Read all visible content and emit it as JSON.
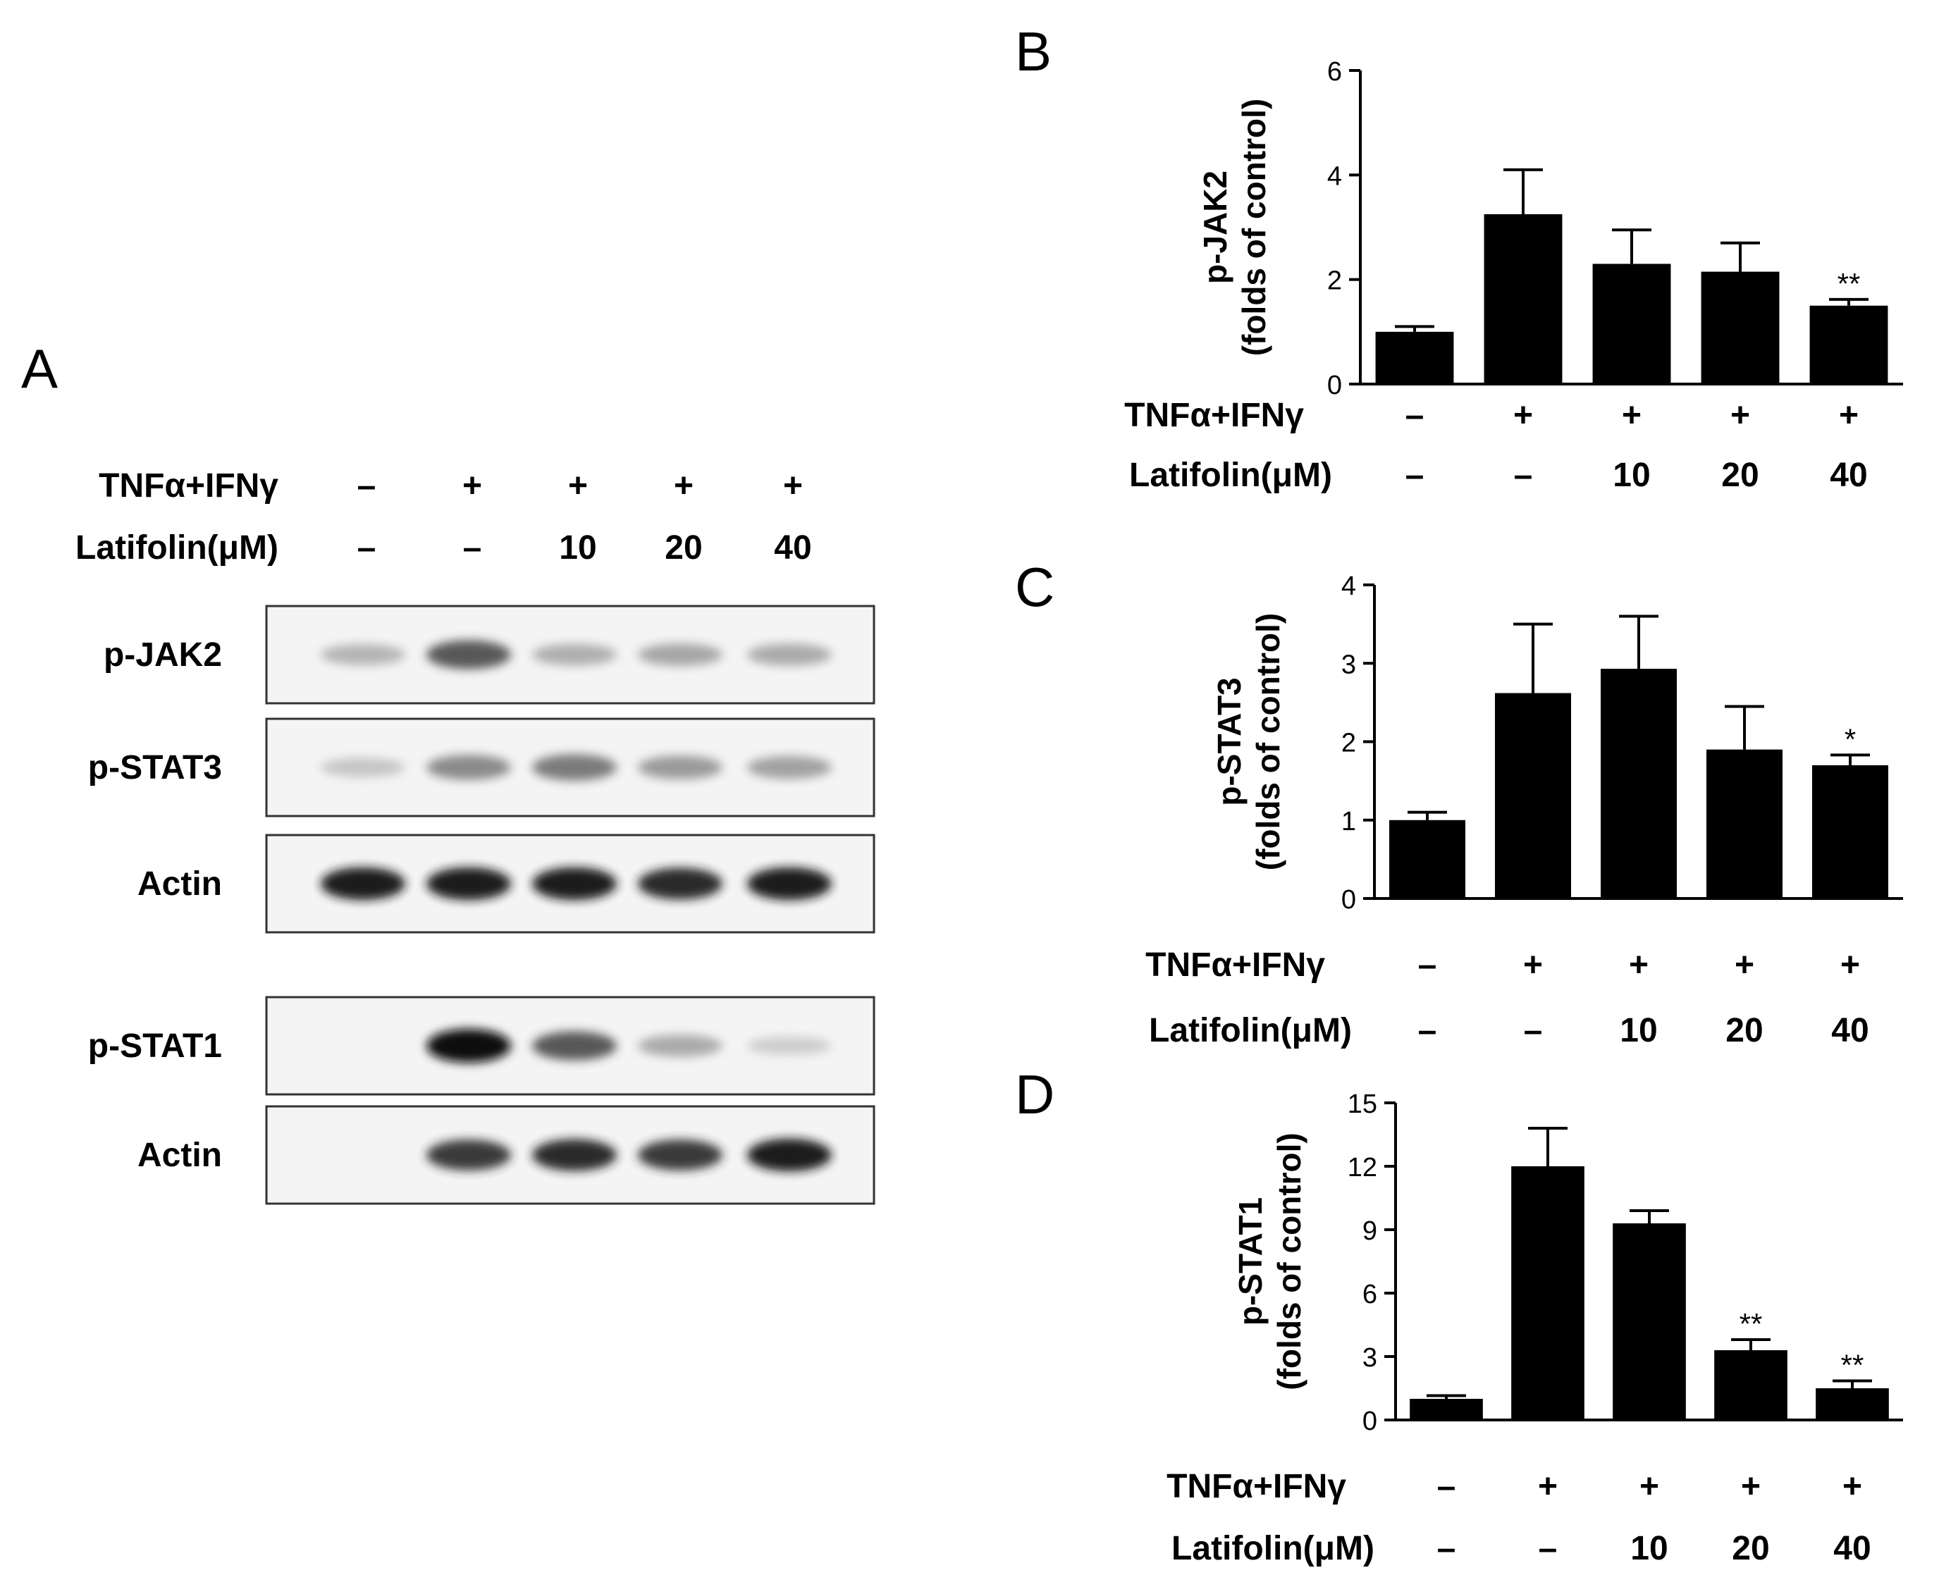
{
  "panel_a": {
    "letter": "A",
    "conditions": {
      "treatment_label": "TNFα+IFNγ",
      "treatment_marks": [
        "–",
        "+",
        "+",
        "+",
        "+"
      ],
      "dose_label": "Latifolin(μM)",
      "dose_marks": [
        "–",
        "–",
        "10",
        "20",
        "40"
      ]
    },
    "blot_groups": [
      {
        "rows": [
          {
            "label": "p-JAK2",
            "intensities": [
              0.35,
              0.75,
              0.38,
              0.42,
              0.4
            ]
          },
          {
            "label": "p-STAT3",
            "intensities": [
              0.25,
              0.55,
              0.62,
              0.48,
              0.45
            ]
          },
          {
            "label": "Actin",
            "intensities": [
              0.95,
              0.95,
              0.95,
              0.9,
              0.95
            ]
          }
        ]
      },
      {
        "rows": [
          {
            "label": "p-STAT1",
            "intensities": [
              0.0,
              1.0,
              0.75,
              0.4,
              0.2
            ]
          },
          {
            "label": "Actin",
            "intensities": [
              0.0,
              0.85,
              0.9,
              0.85,
              0.95
            ]
          }
        ]
      }
    ]
  },
  "chart_data": [
    {
      "panel": "B",
      "type": "bar",
      "ylabel_lines": [
        "p-JAK2",
        "(folds of control)"
      ],
      "ylim": [
        0,
        6
      ],
      "yticks": [
        "0",
        "2",
        "4",
        "6"
      ],
      "values": [
        1.0,
        3.25,
        2.3,
        2.15,
        1.5
      ],
      "errors": [
        0.1,
        0.85,
        0.65,
        0.55,
        0.12
      ],
      "significance": [
        "",
        "",
        "",
        "",
        "**"
      ],
      "treatment_label": "TNFα+IFNγ",
      "treatment_marks": [
        "–",
        "+",
        "+",
        "+",
        "+"
      ],
      "dose_label": "Latifolin(μM)",
      "dose_marks": [
        "–",
        "–",
        "10",
        "20",
        "40"
      ],
      "grid": false,
      "bar_color": "#000000"
    },
    {
      "panel": "C",
      "type": "bar",
      "ylabel_lines": [
        "p-STAT3",
        "(folds of control)"
      ],
      "ylim": [
        0,
        4
      ],
      "yticks": [
        "0",
        "1",
        "2",
        "3",
        "4"
      ],
      "values": [
        1.0,
        2.62,
        2.93,
        1.9,
        1.7
      ],
      "errors": [
        0.1,
        0.88,
        0.67,
        0.55,
        0.13
      ],
      "significance": [
        "",
        "",
        "",
        "",
        "*"
      ],
      "treatment_label": "TNFα+IFNγ",
      "treatment_marks": [
        "–",
        "+",
        "+",
        "+",
        "+"
      ],
      "dose_label": "Latifolin(μM)",
      "dose_marks": [
        "–",
        "–",
        "10",
        "20",
        "40"
      ],
      "grid": false,
      "bar_color": "#000000"
    },
    {
      "panel": "D",
      "type": "bar",
      "ylabel_lines": [
        "p-STAT1",
        "(folds of control)"
      ],
      "ylim": [
        0,
        15
      ],
      "yticks": [
        "0",
        "3",
        "6",
        "9",
        "12",
        "15"
      ],
      "values": [
        1.0,
        12.0,
        9.3,
        3.3,
        1.5
      ],
      "errors": [
        0.15,
        1.8,
        0.6,
        0.5,
        0.35
      ],
      "significance": [
        "",
        "",
        "",
        "**",
        "**"
      ],
      "treatment_label": "TNFα+IFNγ",
      "treatment_marks": [
        "–",
        "+",
        "+",
        "+",
        "+"
      ],
      "dose_label": "Latifolin(μM)",
      "dose_marks": [
        "–",
        "–",
        "10",
        "20",
        "40"
      ],
      "grid": false,
      "bar_color": "#000000"
    }
  ]
}
